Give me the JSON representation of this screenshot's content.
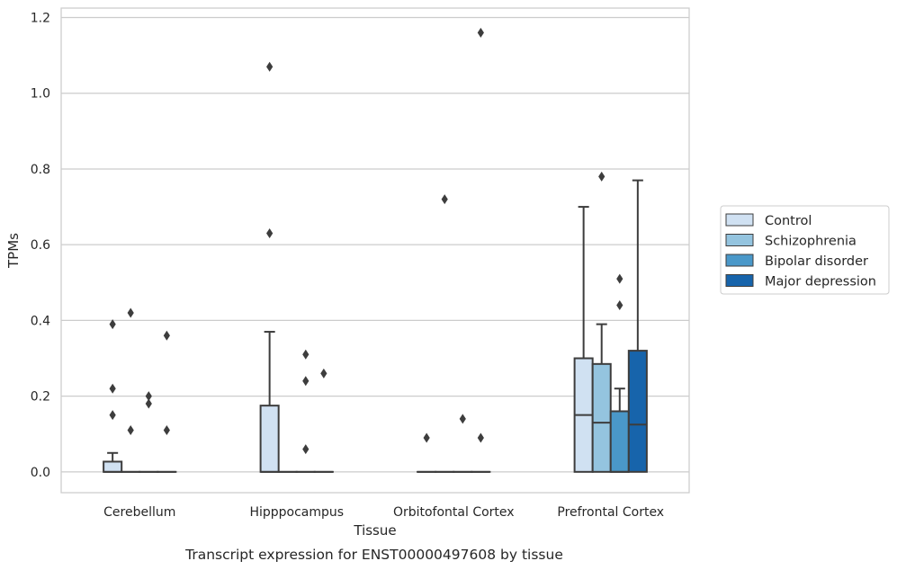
{
  "caption": "Transcript expression for ENST00000497608 by tissue",
  "chart_data": {
    "type": "box",
    "xlabel": "Tissue",
    "ylabel": "TPMs",
    "ylim": [
      -0.055,
      1.225
    ],
    "yticks": [
      "0.0",
      "0.2",
      "0.4",
      "0.6",
      "0.8",
      "1.0",
      "1.2"
    ],
    "grid": "horizontal",
    "legend_position": "right",
    "categories": [
      "Cerebellum",
      "Hipppocampus",
      "Orbitofontal Cortex",
      "Prefrontal Cortex"
    ],
    "series": [
      {
        "name": "Control",
        "color": "#d0e1f2",
        "boxes": [
          {
            "q1": 0,
            "median": 0,
            "q3": 0.027,
            "whisker_low": 0,
            "whisker_high": 0.05,
            "outliers": [
              0.39,
              0.22,
              0.15
            ]
          },
          {
            "q1": 0,
            "median": 0,
            "q3": 0.175,
            "whisker_low": 0,
            "whisker_high": 0.37,
            "outliers": [
              1.07,
              0.63
            ]
          },
          {
            "q1": 0,
            "median": 0,
            "q3": 0,
            "whisker_low": 0,
            "whisker_high": 0,
            "outliers": [
              0.09
            ]
          },
          {
            "q1": 0,
            "median": 0.15,
            "q3": 0.3,
            "whisker_low": 0,
            "whisker_high": 0.7,
            "outliers": []
          }
        ]
      },
      {
        "name": "Schizophrenia",
        "color": "#94c4df",
        "boxes": [
          {
            "q1": 0,
            "median": 0,
            "q3": 0,
            "whisker_low": 0,
            "whisker_high": 0,
            "outliers": [
              0.42,
              0.11
            ]
          },
          {
            "q1": 0,
            "median": 0,
            "q3": 0,
            "whisker_low": 0,
            "whisker_high": 0,
            "outliers": []
          },
          {
            "q1": 0,
            "median": 0,
            "q3": 0,
            "whisker_low": 0,
            "whisker_high": 0,
            "outliers": [
              0.72
            ]
          },
          {
            "q1": 0,
            "median": 0.13,
            "q3": 0.285,
            "whisker_low": 0,
            "whisker_high": 0.39,
            "outliers": [
              0.78
            ]
          }
        ]
      },
      {
        "name": "Bipolar disorder",
        "color": "#4a98c9",
        "boxes": [
          {
            "q1": 0,
            "median": 0,
            "q3": 0,
            "whisker_low": 0,
            "whisker_high": 0,
            "outliers": [
              0.2,
              0.18
            ]
          },
          {
            "q1": 0,
            "median": 0,
            "q3": 0,
            "whisker_low": 0,
            "whisker_high": 0,
            "outliers": [
              0.31,
              0.24,
              0.06
            ]
          },
          {
            "q1": 0,
            "median": 0,
            "q3": 0,
            "whisker_low": 0,
            "whisker_high": 0,
            "outliers": [
              0.14
            ]
          },
          {
            "q1": 0,
            "median": 0,
            "q3": 0.16,
            "whisker_low": 0,
            "whisker_high": 0.22,
            "outliers": [
              0.51,
              0.44
            ]
          }
        ]
      },
      {
        "name": "Major depression",
        "color": "#1764ab",
        "boxes": [
          {
            "q1": 0,
            "median": 0,
            "q3": 0,
            "whisker_low": 0,
            "whisker_high": 0,
            "outliers": [
              0.36,
              0.11
            ]
          },
          {
            "q1": 0,
            "median": 0,
            "q3": 0,
            "whisker_low": 0,
            "whisker_high": 0,
            "outliers": [
              0.26
            ]
          },
          {
            "q1": 0,
            "median": 0,
            "q3": 0,
            "whisker_low": 0,
            "whisker_high": 0,
            "outliers": [
              1.16,
              0.09
            ]
          },
          {
            "q1": 0,
            "median": 0.125,
            "q3": 0.32,
            "whisker_low": 0,
            "whisker_high": 0.77,
            "outliers": []
          }
        ]
      }
    ]
  }
}
